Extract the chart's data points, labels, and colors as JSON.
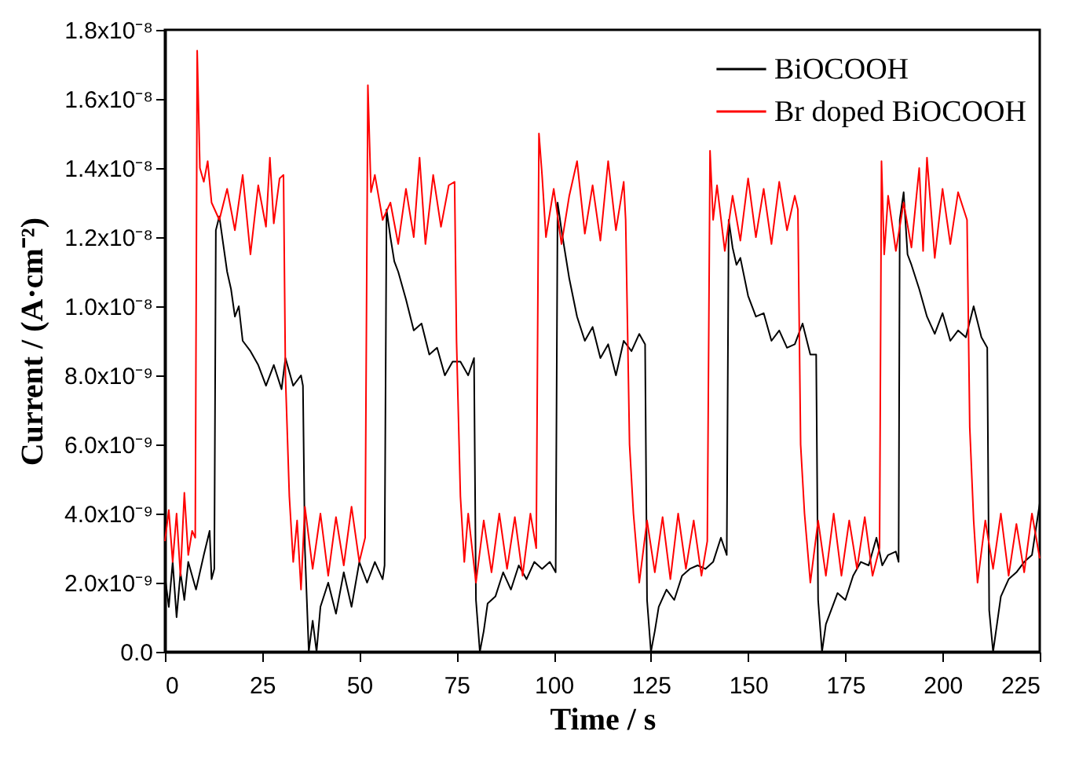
{
  "chart_data": {
    "type": "line",
    "xlabel": "Time / s",
    "ylabel": "Current / (A·cm⁻²)",
    "xlim": [
      0,
      225
    ],
    "xticks": [
      0,
      25,
      50,
      75,
      100,
      125,
      150,
      175,
      200,
      225
    ],
    "ylim": [
      0,
      1.8e-08
    ],
    "yticks": [
      {
        "value": 0,
        "label": "0.0"
      },
      {
        "value": 2e-09,
        "label": "2.0x10⁻⁹"
      },
      {
        "value": 4e-09,
        "label": "4.0x10⁻⁹"
      },
      {
        "value": 6e-09,
        "label": "6.0x10⁻⁹"
      },
      {
        "value": 8e-09,
        "label": "8.0x10⁻⁹"
      },
      {
        "value": 1e-08,
        "label": "1.0x10⁻⁸"
      },
      {
        "value": 1.2e-08,
        "label": "1.2x10⁻⁸"
      },
      {
        "value": 1.4e-08,
        "label": "1.4x10⁻⁸"
      },
      {
        "value": 1.6e-08,
        "label": "1.6x10⁻⁸"
      },
      {
        "value": 1.8e-08,
        "label": "1.8x10⁻⁸"
      }
    ],
    "grid": false,
    "legend": "top right",
    "series": [
      {
        "name": "BiOCOOH",
        "color": "#000000",
        "x": [
          0,
          1,
          2,
          3,
          4,
          5,
          6,
          8,
          10,
          11.5,
          12,
          12.7,
          13.1,
          14,
          15,
          16,
          17,
          18,
          19,
          20,
          22,
          24,
          26,
          28,
          30,
          31,
          33,
          35,
          35.5,
          36,
          37,
          38,
          39,
          40,
          42,
          44,
          46,
          48,
          50,
          52,
          54,
          56,
          56.5,
          57,
          58,
          59,
          60,
          62,
          64,
          66,
          68,
          70,
          72,
          74,
          76,
          78,
          79.5,
          80,
          81,
          82,
          83,
          85,
          87,
          89,
          91,
          93,
          95,
          97,
          99,
          100.5,
          101,
          102,
          103,
          104,
          106,
          108,
          110,
          112,
          114,
          116,
          118,
          120,
          122,
          123.5,
          124,
          125,
          126,
          127,
          129,
          131,
          133,
          135,
          137,
          139,
          141,
          143,
          144.5,
          145,
          146,
          147,
          148,
          150,
          152,
          154,
          156,
          158,
          160,
          162,
          164,
          166,
          167.5,
          168,
          169,
          170,
          171,
          173,
          175,
          177,
          179,
          181,
          183,
          184.5,
          186,
          188,
          188.7,
          189,
          190,
          191,
          192,
          194,
          196,
          198,
          200,
          202,
          204,
          206,
          208,
          210,
          211.5,
          212,
          213,
          214,
          215,
          217,
          219,
          221,
          223,
          225
        ],
        "values": [
          2.2e-09,
          1.3e-09,
          2.6e-09,
          1e-09,
          2.3e-09,
          1.5e-09,
          2.6e-09,
          1.8e-09,
          2.8e-09,
          3.5e-09,
          2.1e-09,
          2.4e-09,
          1.22e-08,
          1.26e-08,
          1.18e-08,
          1.1e-08,
          1.05e-08,
          9.7e-09,
          1e-08,
          9e-09,
          8.7e-09,
          8.3e-09,
          7.7e-09,
          8.3e-09,
          7.6e-09,
          8.5e-09,
          7.7e-09,
          8e-09,
          7.7e-09,
          3e-09,
          0,
          9e-10,
          0,
          1.3e-09,
          2e-09,
          1.1e-09,
          2.3e-09,
          1.3e-09,
          2.6e-09,
          2e-09,
          2.6e-09,
          2.1e-09,
          2.5e-09,
          1.28e-08,
          1.2e-08,
          1.13e-08,
          1.1e-08,
          1.02e-08,
          9.3e-09,
          9.5e-09,
          8.6e-09,
          8.8e-09,
          8e-09,
          8.4e-09,
          8.4e-09,
          8e-09,
          8.5e-09,
          1.5e-09,
          0,
          6e-10,
          1.4e-09,
          1.6e-09,
          2.3e-09,
          1.8e-09,
          2.5e-09,
          2.1e-09,
          2.6e-09,
          2.4e-09,
          2.6e-09,
          2.3e-09,
          1.3e-08,
          1.22e-08,
          1.15e-08,
          1.08e-08,
          9.7e-09,
          9e-09,
          9.4e-09,
          8.5e-09,
          8.9e-09,
          8e-09,
          9e-09,
          8.7e-09,
          9.2e-09,
          8.9e-09,
          1.5e-09,
          0,
          6e-10,
          1.3e-09,
          1.8e-09,
          1.5e-09,
          2.2e-09,
          2.4e-09,
          2.5e-09,
          2.4e-09,
          2.6e-09,
          3.3e-09,
          2.8e-09,
          1.25e-08,
          1.17e-08,
          1.12e-08,
          1.14e-08,
          1.03e-08,
          9.7e-09,
          9.8e-09,
          9e-09,
          9.3e-09,
          8.8e-09,
          8.9e-09,
          9.5e-09,
          8.6e-09,
          8.6e-09,
          1.5e-09,
          0,
          8e-10,
          1.1e-09,
          1.7e-09,
          1.5e-09,
          2.2e-09,
          2.6e-09,
          2.5e-09,
          3.3e-09,
          2.5e-09,
          2.8e-09,
          2.9e-09,
          2.6e-09,
          1.25e-08,
          1.33e-08,
          1.15e-08,
          1.12e-08,
          1.05e-08,
          9.7e-09,
          9.2e-09,
          9.8e-09,
          9e-09,
          9.3e-09,
          9.1e-09,
          1e-08,
          9.1e-09,
          8.8e-09,
          1.2e-09,
          0,
          8e-10,
          1.6e-09,
          2.1e-09,
          2.3e-09,
          2.6e-09,
          2.8e-09,
          4.3e-09
        ]
      },
      {
        "name": "Br doped BiOCOOH",
        "color": "#ff0000",
        "x": [
          0,
          1,
          2,
          3,
          4,
          5,
          6,
          7,
          7.8,
          8.3,
          9,
          10,
          11,
          12,
          14,
          16,
          18,
          20,
          22,
          24,
          26,
          27,
          28,
          29.5,
          30.5,
          31,
          32,
          33,
          34,
          35,
          36,
          38,
          40,
          42,
          44,
          46,
          48,
          50,
          51.5,
          52.2,
          53,
          54,
          56,
          58,
          60,
          62,
          64,
          65.5,
          67,
          69,
          71,
          73,
          74.5,
          75,
          76,
          77,
          78,
          80,
          82,
          84,
          86,
          88,
          90,
          92,
          94,
          95.5,
          96.2,
          97,
          98,
          100,
          102,
          104,
          106,
          108,
          110,
          112,
          114,
          116,
          118,
          118.5,
          119.5,
          120.5,
          122,
          124,
          126,
          128,
          130,
          132,
          134,
          136,
          138,
          139.5,
          140.2,
          141,
          142,
          144,
          146,
          148,
          150,
          152,
          154,
          156,
          158,
          160,
          162,
          162.8,
          163.5,
          164.5,
          166,
          168,
          170,
          172,
          174,
          176,
          178,
          180,
          182,
          183.8,
          184.3,
          185,
          186,
          188,
          190,
          192,
          194,
          195,
          196,
          198,
          200,
          202,
          204,
          206.3,
          207,
          208,
          209,
          211,
          213,
          215,
          217,
          219,
          221,
          223,
          225
        ],
        "values": [
          3.2e-09,
          4.1e-09,
          2.6e-09,
          4e-09,
          2.2e-09,
          4.6e-09,
          2.8e-09,
          3.5e-09,
          3.3e-09,
          1.74e-08,
          1.4e-08,
          1.36e-08,
          1.42e-08,
          1.3e-08,
          1.25e-08,
          1.34e-08,
          1.22e-08,
          1.38e-08,
          1.15e-08,
          1.35e-08,
          1.23e-08,
          1.43e-08,
          1.24e-08,
          1.37e-08,
          1.38e-08,
          8e-09,
          4.5e-09,
          2.6e-09,
          3.8e-09,
          1.8e-09,
          4.2e-09,
          2.4e-09,
          4e-09,
          2.2e-09,
          3.9e-09,
          2.5e-09,
          4.2e-09,
          2.6e-09,
          3.3e-09,
          1.64e-08,
          1.33e-08,
          1.38e-08,
          1.25e-08,
          1.3e-08,
          1.18e-08,
          1.34e-08,
          1.2e-08,
          1.43e-08,
          1.18e-08,
          1.38e-08,
          1.23e-08,
          1.35e-08,
          1.36e-08,
          9e-09,
          4.5e-09,
          2.6e-09,
          4e-09,
          2e-09,
          3.8e-09,
          2.3e-09,
          4e-09,
          2.4e-09,
          3.9e-09,
          2.2e-09,
          4e-09,
          3e-09,
          1.5e-08,
          1.38e-08,
          1.2e-08,
          1.34e-08,
          1.18e-08,
          1.32e-08,
          1.42e-08,
          1.21e-08,
          1.35e-08,
          1.19e-08,
          1.42e-08,
          1.22e-08,
          1.36e-08,
          1.25e-08,
          6e-09,
          4e-09,
          2e-09,
          3.8e-09,
          2.3e-09,
          3.9e-09,
          2.1e-09,
          4e-09,
          2.4e-09,
          3.8e-09,
          2.2e-09,
          3.2e-09,
          1.45e-08,
          1.25e-08,
          1.35e-08,
          1.16e-08,
          1.32e-08,
          1.19e-08,
          1.37e-08,
          1.2e-08,
          1.34e-08,
          1.18e-08,
          1.36e-08,
          1.22e-08,
          1.32e-08,
          1.28e-08,
          6e-09,
          4e-09,
          2e-09,
          3.8e-09,
          2.2e-09,
          4e-09,
          2.2e-09,
          3.8e-09,
          2.4e-09,
          3.9e-09,
          2.2e-09,
          3e-09,
          1.42e-08,
          1.15e-08,
          1.32e-08,
          1.16e-08,
          1.3e-08,
          1.17e-08,
          1.4e-08,
          1.16e-08,
          1.43e-08,
          1.14e-08,
          1.34e-08,
          1.18e-08,
          1.33e-08,
          1.25e-08,
          6.5e-09,
          3.8e-09,
          2e-09,
          3.8e-09,
          2.4e-09,
          4e-09,
          2.2e-09,
          3.7e-09,
          2.3e-09,
          4e-09,
          2.7e-09
        ]
      }
    ]
  }
}
